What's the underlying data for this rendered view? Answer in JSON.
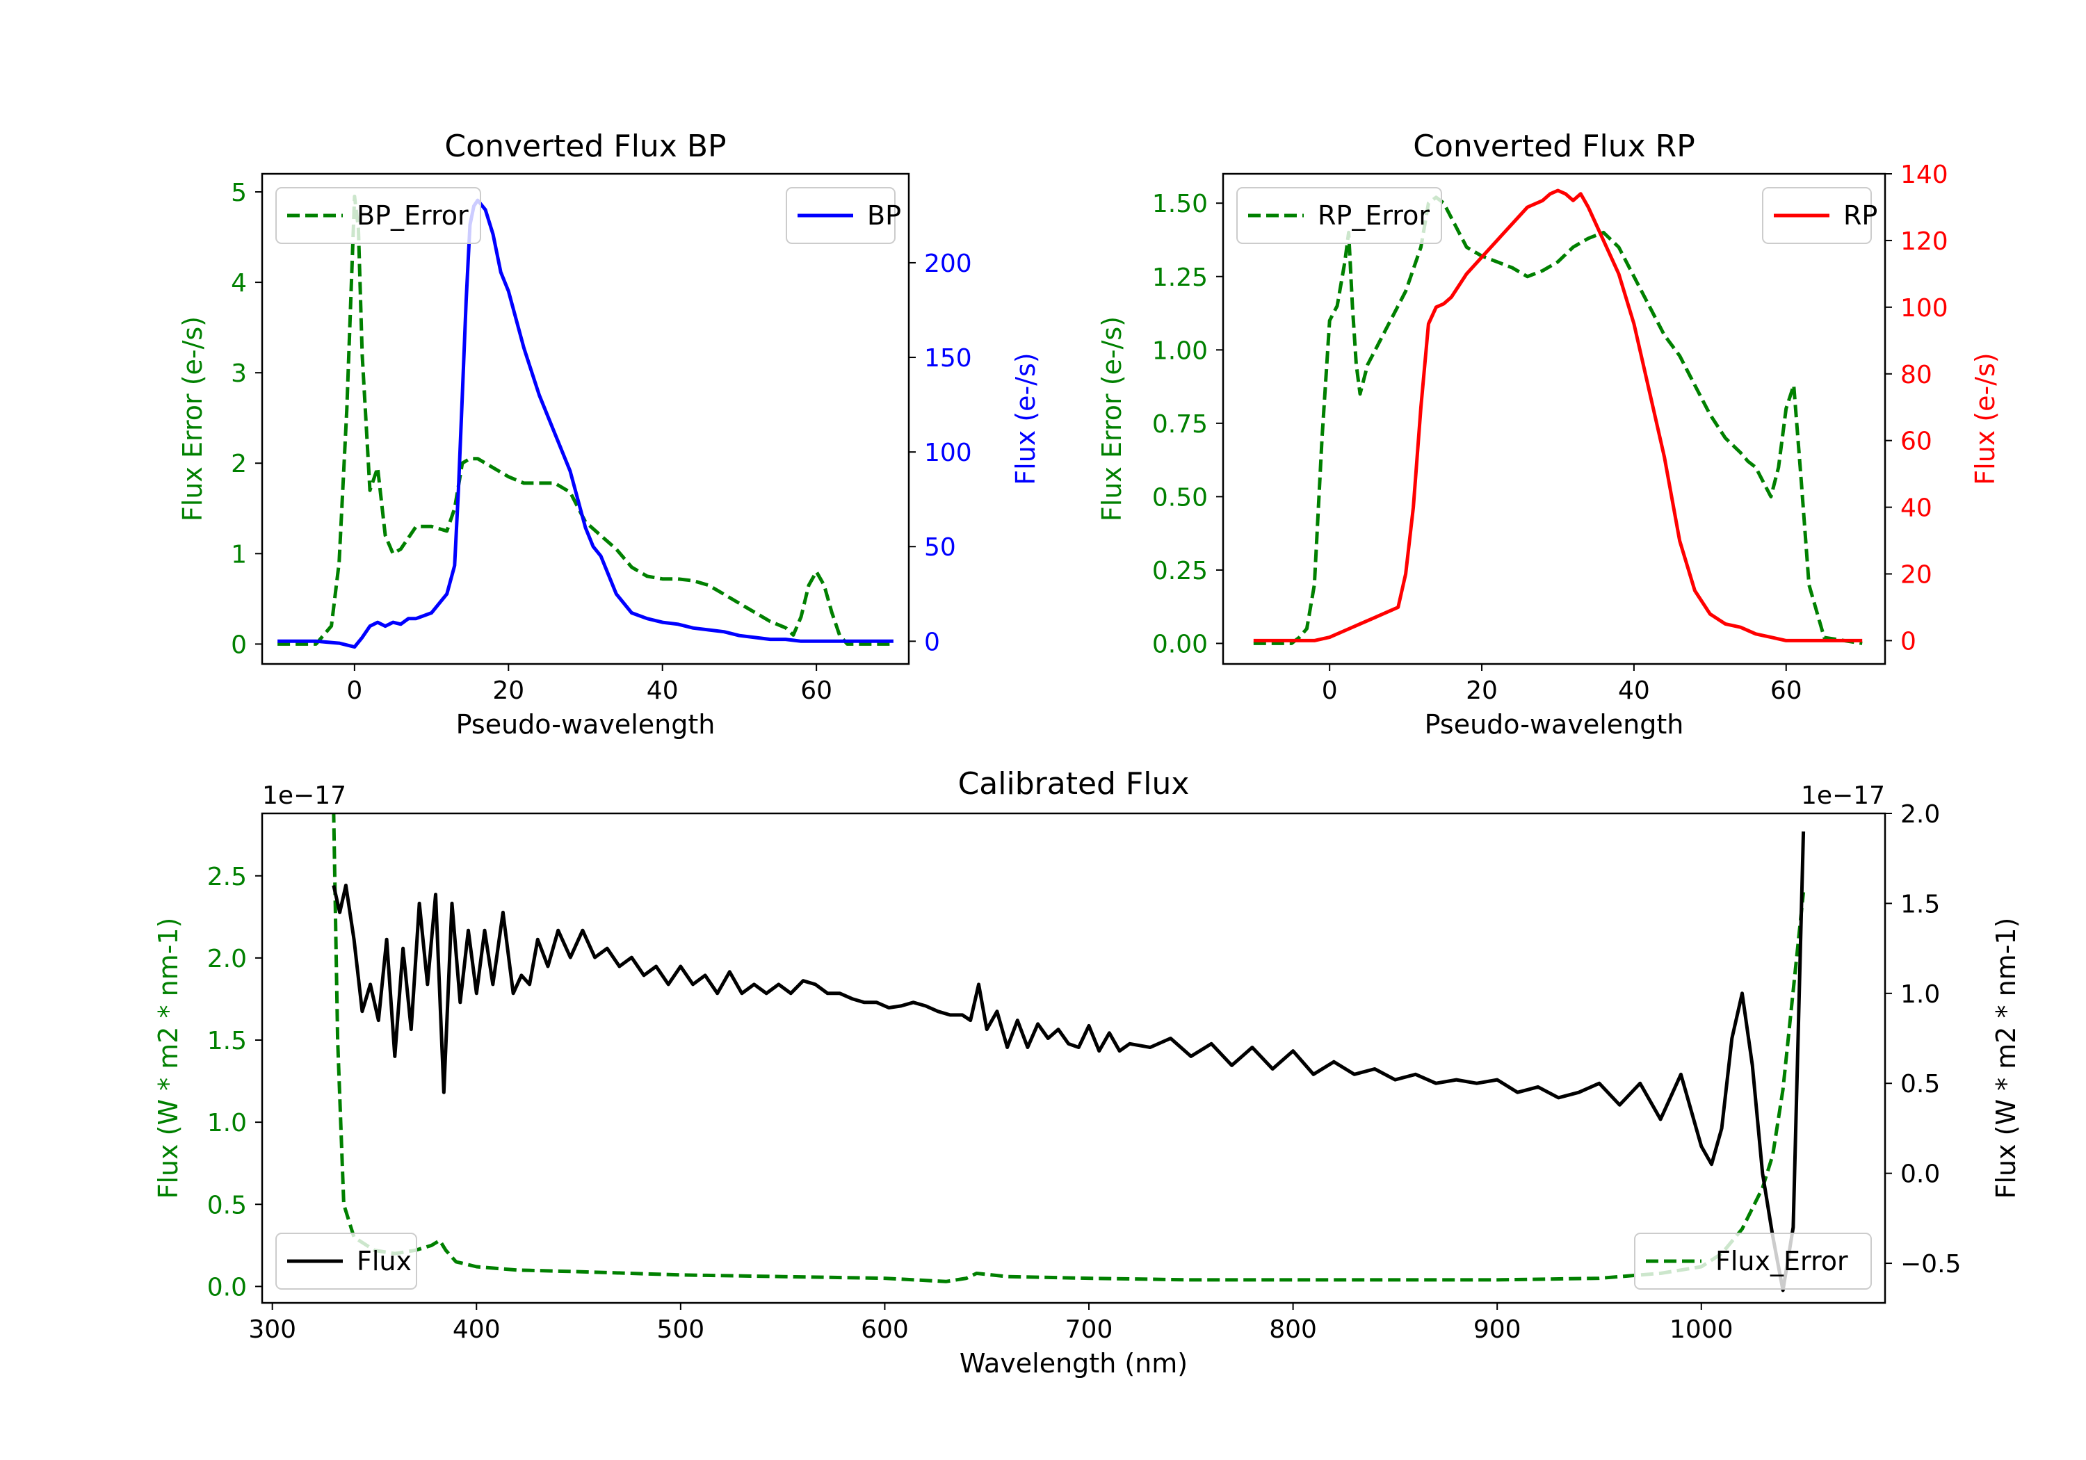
{
  "chart_data": [
    {
      "type": "line",
      "title": "Converted Flux BP",
      "xlabel": "Pseudo-wavelength",
      "ylabel_left": "Flux Error (e-/s)",
      "ylabel_right": "Flux (e-/s)",
      "xlim": [
        -12,
        72
      ],
      "ylim_left": [
        -0.22,
        5.2
      ],
      "ylim_right": [
        -12,
        247
      ],
      "xticks": [
        0,
        20,
        40,
        60
      ],
      "yticks_left": [
        0,
        1,
        2,
        3,
        4,
        5
      ],
      "yticks_right": [
        0,
        50,
        100,
        150,
        200
      ],
      "colors": {
        "left": "#008000",
        "right": "#0000ff"
      },
      "series": [
        {
          "name": "BP_Error",
          "axis": "left",
          "style": "dashed",
          "color": "#008000",
          "x": [
            -10,
            -5,
            -3,
            -2,
            -1,
            0,
            0.5,
            1,
            2,
            3,
            4,
            5,
            6,
            8,
            10,
            12,
            13,
            14,
            15,
            16,
            18,
            20,
            22,
            24,
            26,
            28,
            30,
            32,
            34,
            36,
            38,
            40,
            42,
            44,
            46,
            48,
            50,
            52,
            54,
            56,
            57,
            58,
            59,
            60,
            61,
            62,
            63,
            64,
            66,
            68,
            70
          ],
          "y": [
            0,
            0,
            0.2,
            0.9,
            2.6,
            4.95,
            4.6,
            3.2,
            1.7,
            1.95,
            1.2,
            1.0,
            1.05,
            1.3,
            1.3,
            1.25,
            1.5,
            2.0,
            2.05,
            2.05,
            1.95,
            1.85,
            1.78,
            1.78,
            1.78,
            1.68,
            1.35,
            1.2,
            1.05,
            0.85,
            0.75,
            0.72,
            0.72,
            0.7,
            0.65,
            0.55,
            0.45,
            0.35,
            0.25,
            0.18,
            0.1,
            0.3,
            0.65,
            0.8,
            0.65,
            0.35,
            0.1,
            0,
            0,
            0,
            0
          ]
        },
        {
          "name": "BP",
          "axis": "right",
          "style": "solid",
          "color": "#0000ff",
          "x": [
            -10,
            -5,
            -2,
            0,
            1,
            2,
            3,
            4,
            5,
            6,
            7,
            8,
            10,
            11,
            12,
            13,
            13.5,
            14,
            14.5,
            15,
            15.5,
            16,
            17,
            18,
            19,
            20,
            22,
            24,
            26,
            28,
            30,
            31,
            32,
            33,
            34,
            36,
            38,
            40,
            42,
            44,
            46,
            48,
            50,
            52,
            54,
            56,
            58,
            60,
            62,
            64,
            66,
            68,
            70
          ],
          "y": [
            0,
            0,
            -1,
            -3,
            2,
            8,
            10,
            8,
            10,
            9,
            12,
            12,
            15,
            20,
            25,
            40,
            80,
            130,
            180,
            220,
            230,
            233,
            228,
            215,
            195,
            185,
            155,
            130,
            110,
            90,
            60,
            50,
            45,
            35,
            25,
            15,
            12,
            10,
            9,
            7,
            6,
            5,
            3,
            2,
            1,
            1,
            0,
            0,
            0,
            0,
            0,
            0,
            0
          ]
        }
      ],
      "legend": [
        {
          "label": "BP_Error",
          "position": "upper-left"
        },
        {
          "label": "BP",
          "position": "upper-right"
        }
      ]
    },
    {
      "type": "line",
      "title": "Converted Flux RP",
      "xlabel": "Pseudo-wavelength",
      "ylabel_left": "Flux Error (e-/s)",
      "ylabel_right": "Flux (e-/s)",
      "xlim": [
        -14,
        73
      ],
      "ylim_left": [
        -0.07,
        1.6
      ],
      "ylim_right": [
        -7,
        140
      ],
      "xticks": [
        0,
        20,
        40,
        60
      ],
      "yticks_left": [
        0.0,
        0.25,
        0.5,
        0.75,
        1.0,
        1.25,
        1.5
      ],
      "yticks_left_labels": [
        "0.00",
        "0.25",
        "0.50",
        "0.75",
        "1.00",
        "1.25",
        "1.50"
      ],
      "yticks_right": [
        0,
        20,
        40,
        60,
        80,
        100,
        120,
        140
      ],
      "colors": {
        "left": "#008000",
        "right": "#ff0000"
      },
      "series": [
        {
          "name": "RP_Error",
          "axis": "left",
          "style": "dashed",
          "color": "#008000",
          "x": [
            -10,
            -5,
            -4,
            -3,
            -2,
            -1,
            0,
            1,
            2,
            2.5,
            3,
            3.5,
            4,
            5,
            6,
            7,
            8,
            10,
            12,
            13,
            14,
            15,
            16,
            18,
            20,
            22,
            24,
            26,
            28,
            30,
            32,
            34,
            36,
            38,
            40,
            42,
            44,
            46,
            48,
            50,
            52,
            54,
            55,
            56,
            57,
            58,
            59,
            60,
            61,
            62,
            63,
            65,
            70
          ],
          "y": [
            0,
            0,
            0.02,
            0.05,
            0.2,
            0.7,
            1.1,
            1.15,
            1.3,
            1.4,
            1.15,
            0.95,
            0.85,
            0.95,
            1.0,
            1.05,
            1.1,
            1.2,
            1.35,
            1.5,
            1.52,
            1.5,
            1.45,
            1.35,
            1.32,
            1.3,
            1.28,
            1.25,
            1.27,
            1.3,
            1.35,
            1.38,
            1.4,
            1.35,
            1.25,
            1.15,
            1.05,
            0.98,
            0.88,
            0.78,
            0.7,
            0.65,
            0.62,
            0.6,
            0.55,
            0.5,
            0.6,
            0.8,
            0.88,
            0.55,
            0.2,
            0.02,
            0
          ]
        },
        {
          "name": "RP",
          "axis": "right",
          "style": "solid",
          "color": "#ff0000",
          "x": [
            -10,
            -5,
            -2,
            0,
            2,
            4,
            6,
            8,
            9,
            10,
            11,
            12,
            13,
            14,
            15,
            16,
            18,
            20,
            22,
            24,
            26,
            28,
            29,
            30,
            31,
            32,
            33,
            34,
            36,
            38,
            40,
            42,
            44,
            46,
            48,
            50,
            52,
            54,
            56,
            58,
            60,
            62,
            64,
            66,
            70
          ],
          "y": [
            0,
            0,
            0,
            1,
            3,
            5,
            7,
            9,
            10,
            20,
            40,
            70,
            95,
            100,
            101,
            103,
            110,
            115,
            120,
            125,
            130,
            132,
            134,
            135,
            134,
            132,
            134,
            130,
            120,
            110,
            95,
            75,
            55,
            30,
            15,
            8,
            5,
            4,
            2,
            1,
            0,
            0,
            0,
            0,
            0
          ]
        }
      ],
      "legend": [
        {
          "label": "RP_Error",
          "position": "upper-left"
        },
        {
          "label": "RP",
          "position": "upper-right"
        }
      ]
    },
    {
      "type": "line",
      "title": "Calibrated Flux",
      "xlabel": "Wavelength (nm)",
      "ylabel_left": "Flux (W * m2 * nm-1)",
      "ylabel_right": "Flux (W * m2 * nm-1)",
      "offset_left": "1e−17",
      "offset_right": "1e−17",
      "xlim": [
        295,
        1090
      ],
      "ylim_left": [
        -0.1,
        2.88
      ],
      "ylim_right": [
        -0.72,
        2.0
      ],
      "xticks": [
        300,
        400,
        500,
        600,
        700,
        800,
        900,
        1000
      ],
      "yticks_left": [
        0.0,
        0.5,
        1.0,
        1.5,
        2.0,
        2.5
      ],
      "yticks_left_labels": [
        "0.0",
        "0.5",
        "1.0",
        "1.5",
        "2.0",
        "2.5"
      ],
      "yticks_right": [
        -0.5,
        0.0,
        0.5,
        1.0,
        1.5,
        2.0
      ],
      "yticks_right_labels": [
        "−0.5",
        "0.0",
        "0.5",
        "1.0",
        "1.5",
        "2.0"
      ],
      "colors": {
        "left": "#008000",
        "right": "#000000"
      },
      "series": [
        {
          "name": "Flux_Error",
          "axis": "left",
          "style": "dashed",
          "color": "#008000",
          "x": [
            330,
            332,
            335,
            340,
            350,
            360,
            370,
            378,
            382,
            385,
            390,
            400,
            420,
            450,
            500,
            550,
            600,
            630,
            640,
            645,
            660,
            700,
            750,
            800,
            850,
            900,
            950,
            980,
            1000,
            1010,
            1020,
            1030,
            1035,
            1040,
            1045,
            1050
          ],
          "y": [
            2.9,
            1.5,
            0.5,
            0.3,
            0.22,
            0.2,
            0.22,
            0.25,
            0.28,
            0.22,
            0.15,
            0.12,
            0.1,
            0.09,
            0.07,
            0.06,
            0.05,
            0.03,
            0.05,
            0.08,
            0.06,
            0.05,
            0.04,
            0.04,
            0.04,
            0.04,
            0.05,
            0.08,
            0.12,
            0.2,
            0.35,
            0.6,
            0.8,
            1.2,
            1.8,
            2.4
          ]
        },
        {
          "name": "Flux",
          "axis": "right",
          "style": "solid",
          "color": "#000000",
          "x": [
            330,
            333,
            336,
            340,
            344,
            348,
            352,
            356,
            360,
            364,
            368,
            372,
            376,
            380,
            384,
            388,
            392,
            396,
            400,
            404,
            408,
            413,
            418,
            422,
            426,
            430,
            435,
            440,
            446,
            452,
            458,
            464,
            470,
            476,
            482,
            488,
            494,
            500,
            506,
            512,
            518,
            524,
            530,
            536,
            542,
            548,
            554,
            560,
            566,
            572,
            578,
            584,
            590,
            596,
            602,
            608,
            614,
            620,
            626,
            632,
            638,
            642,
            646,
            650,
            655,
            660,
            665,
            670,
            675,
            680,
            685,
            690,
            695,
            700,
            705,
            710,
            715,
            720,
            730,
            740,
            750,
            760,
            770,
            780,
            790,
            800,
            810,
            820,
            830,
            840,
            850,
            860,
            870,
            880,
            890,
            900,
            910,
            920,
            930,
            940,
            950,
            960,
            970,
            980,
            990,
            1000,
            1005,
            1010,
            1015,
            1020,
            1025,
            1030,
            1035,
            1040,
            1045,
            1050
          ],
          "y": [
            1.6,
            1.45,
            1.6,
            1.3,
            0.9,
            1.05,
            0.85,
            1.3,
            0.65,
            1.25,
            0.8,
            1.5,
            1.05,
            1.55,
            0.45,
            1.5,
            0.95,
            1.35,
            1.0,
            1.35,
            1.05,
            1.45,
            1.0,
            1.1,
            1.05,
            1.3,
            1.15,
            1.35,
            1.2,
            1.35,
            1.2,
            1.25,
            1.15,
            1.2,
            1.1,
            1.15,
            1.05,
            1.15,
            1.05,
            1.1,
            1.0,
            1.12,
            1.0,
            1.05,
            1.0,
            1.05,
            1.0,
            1.07,
            1.05,
            1.0,
            1.0,
            0.97,
            0.95,
            0.95,
            0.92,
            0.93,
            0.95,
            0.93,
            0.9,
            0.88,
            0.88,
            0.85,
            1.05,
            0.8,
            0.9,
            0.7,
            0.85,
            0.7,
            0.83,
            0.75,
            0.8,
            0.72,
            0.7,
            0.82,
            0.68,
            0.78,
            0.68,
            0.72,
            0.7,
            0.75,
            0.65,
            0.72,
            0.6,
            0.7,
            0.58,
            0.68,
            0.55,
            0.62,
            0.55,
            0.58,
            0.52,
            0.55,
            0.5,
            0.52,
            0.5,
            0.52,
            0.45,
            0.48,
            0.42,
            0.45,
            0.5,
            0.38,
            0.5,
            0.3,
            0.55,
            0.15,
            0.05,
            0.25,
            0.75,
            1.0,
            0.6,
            0.0,
            -0.35,
            -0.65,
            -0.3,
            1.9
          ]
        }
      ],
      "legend": [
        {
          "label": "Flux",
          "position": "lower-left"
        },
        {
          "label": "Flux_Error",
          "position": "lower-right"
        }
      ]
    }
  ]
}
